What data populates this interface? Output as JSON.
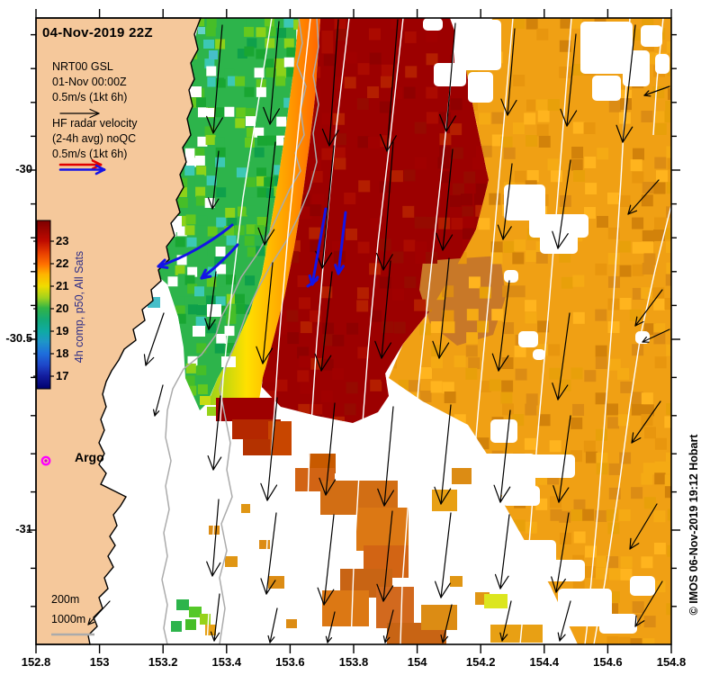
{
  "title": "04-Nov-2019 22Z",
  "legend": {
    "nrt": [
      "NRT00 GSL",
      "01-Nov 00:00Z",
      "0.5m/s (1kt 6h)"
    ],
    "hf": [
      "HF radar velocity",
      "(2-4h avg) noQC",
      "0.5m/s (1kt 6h)"
    ]
  },
  "colorbar": {
    "label": "4h comp, p50, All Sats",
    "ticks": [
      {
        "label": "23",
        "value": 23
      },
      {
        "label": "22",
        "value": 22
      },
      {
        "label": "21",
        "value": 21
      },
      {
        "label": "20",
        "value": 20
      },
      {
        "label": "19",
        "value": 19
      },
      {
        "label": "18",
        "value": 18
      },
      {
        "label": "17",
        "value": 17
      }
    ]
  },
  "axes": {
    "x": {
      "ticks": [
        {
          "label": "152.8",
          "value": 152.8
        },
        {
          "label": "153",
          "value": 153
        },
        {
          "label": "153.2",
          "value": 153.2
        },
        {
          "label": "153.4",
          "value": 153.4
        },
        {
          "label": "153.6",
          "value": 153.6
        },
        {
          "label": "153.8",
          "value": 153.8
        },
        {
          "label": "154",
          "value": 154
        },
        {
          "label": "154.2",
          "value": 154.2
        },
        {
          "label": "154.4",
          "value": 154.4
        },
        {
          "label": "154.6",
          "value": 154.6
        },
        {
          "label": "154.8",
          "value": 154.8
        }
      ]
    },
    "y": {
      "ticks": [
        {
          "label": "-30",
          "value": -30
        },
        {
          "label": "-30.5",
          "value": -30.5
        },
        {
          "label": "-31",
          "value": -31
        }
      ]
    }
  },
  "markers": {
    "argo": "Argo"
  },
  "depth_contours": {
    "labels": [
      "200m",
      "1000m"
    ]
  },
  "credit": "© IMOS 06-Nov-2019 19:12 Hobart",
  "colors": {
    "land": "#F5C89B",
    "sea": "#FFFFFF",
    "plume": "#9C0000",
    "orange_field": "#F0A014",
    "green_band": "#2DB44B",
    "current_arrow": "#000000",
    "hf_arrow": "#1414E6",
    "legend_red": "#E10000",
    "argo_marker": "#FF00FF",
    "bathy_contour": "#ABABAB",
    "ssh_contour": "#FFFFFF",
    "colorbar_label": "#2D2D86"
  }
}
